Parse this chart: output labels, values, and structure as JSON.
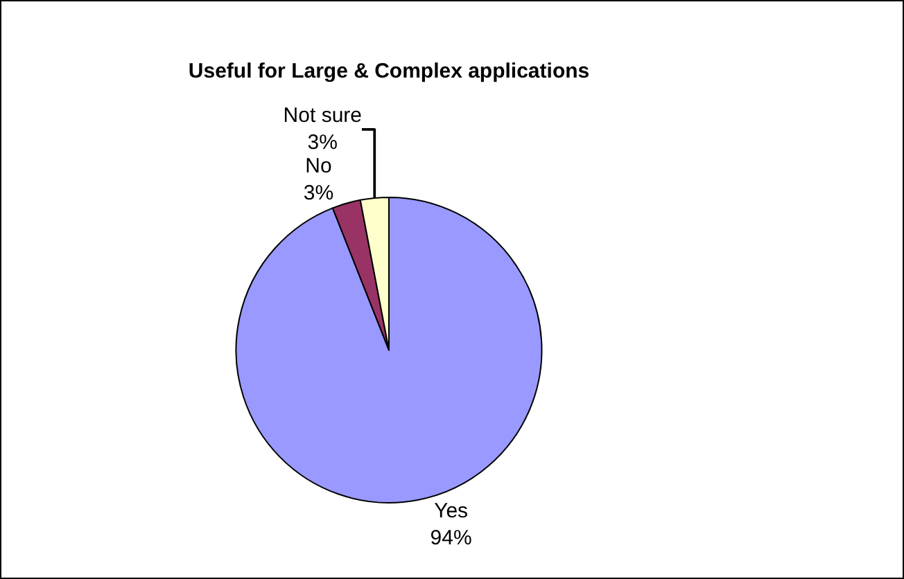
{
  "chart_data": {
    "type": "pie",
    "title": "Useful for Large & Complex applications",
    "categories": [
      "Yes",
      "No",
      "Not sure"
    ],
    "values": [
      94,
      3,
      3
    ],
    "value_labels": [
      "94%",
      "3%",
      "3%"
    ],
    "colors": [
      "#9999ff",
      "#993366",
      "#ffffcc"
    ],
    "legend": false
  }
}
